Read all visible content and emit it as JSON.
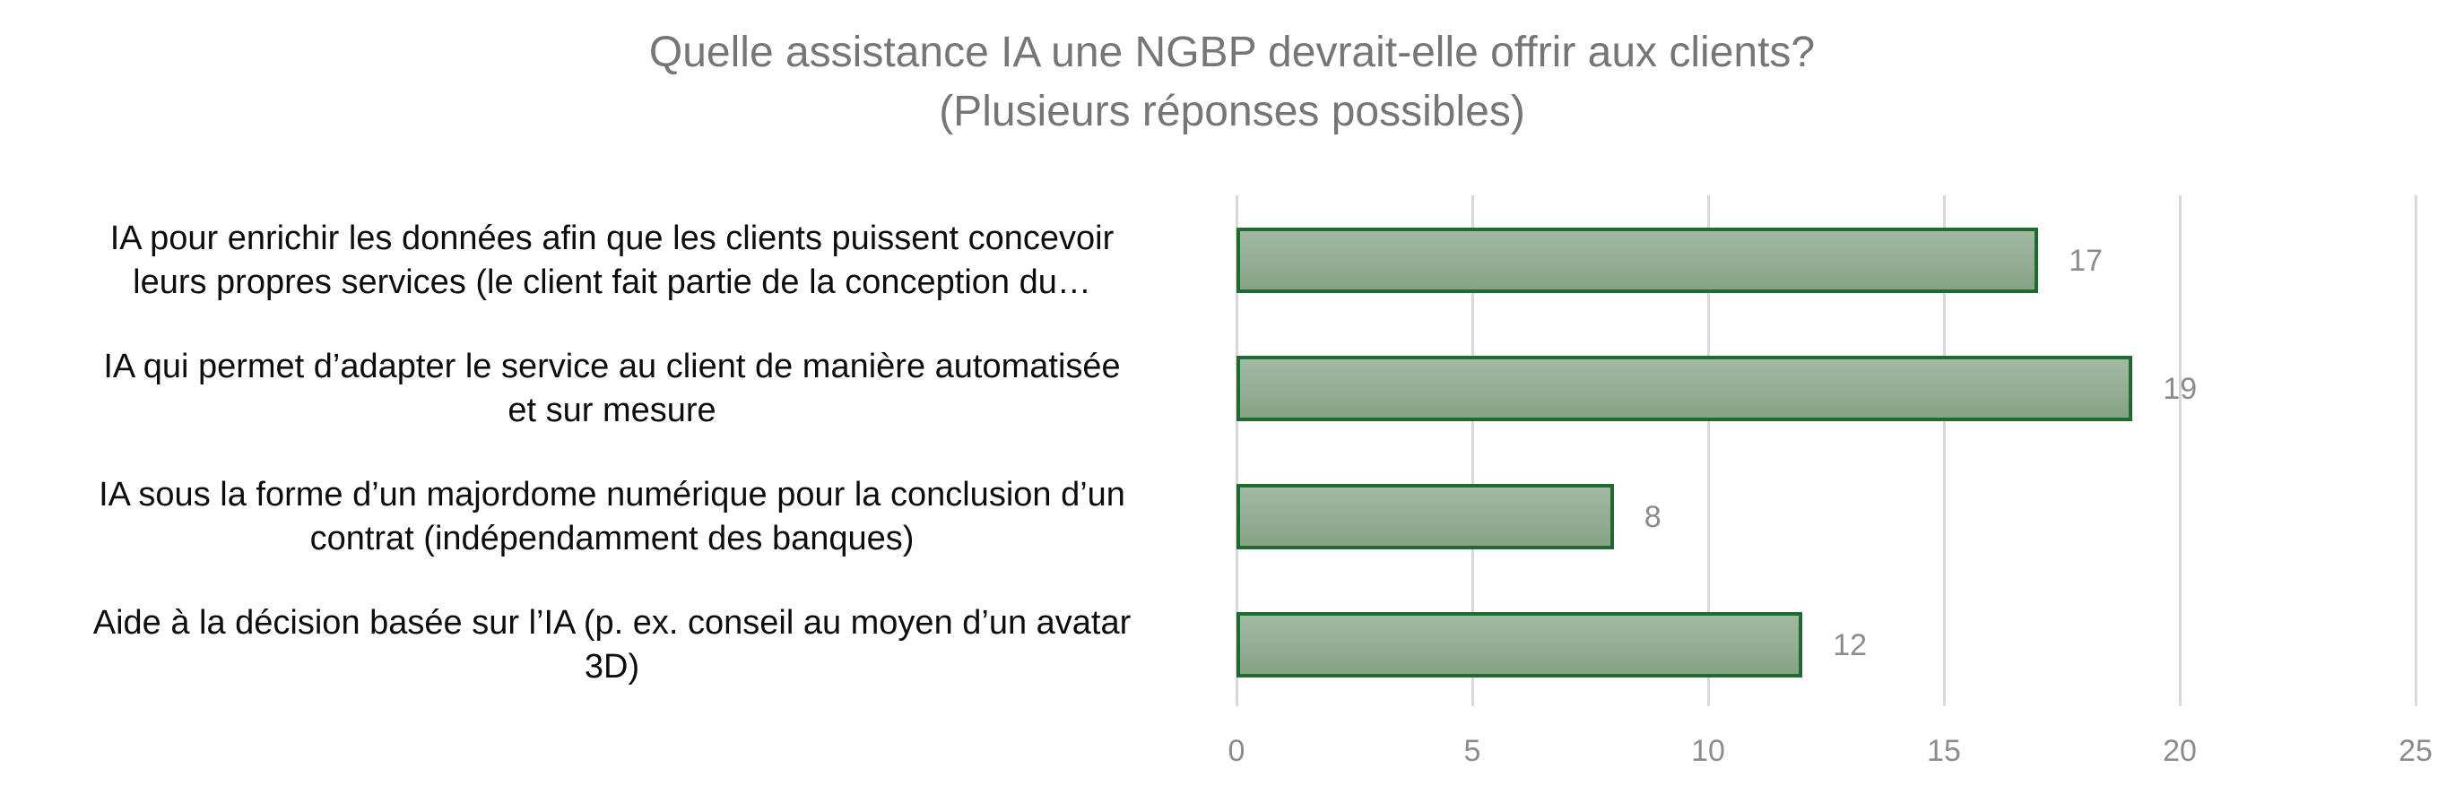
{
  "chart": {
    "title_line1": "Quelle assistance IA une NGBP devrait-elle offrir aux clients?",
    "title_line2": "(Plusieurs réponses possibles)"
  },
  "chart_data": {
    "type": "bar",
    "orientation": "horizontal",
    "title": "Quelle assistance IA une NGBP devrait-elle offrir aux clients? (Plusieurs réponses possibles)",
    "categories": [
      "IA pour enrichir les données afin que les clients puissent concevoir leurs propres services (le client fait partie de la conception du…",
      "IA qui permet d’adapter le service au client de manière automatisée et sur mesure",
      "IA sous la forme d’un majordome numérique pour la conclusion d’un contrat (indépendamment des banques)",
      "Aide à la décision basée sur l’IA (p. ex. conseil au moyen d’un avatar 3D)"
    ],
    "category_lines": [
      [
        "IA pour enrichir les données afin que les clients puissent concevoir",
        "leurs propres services (le client fait partie de la conception du…"
      ],
      [
        "IA qui permet d’adapter le service au client de manière automatisée",
        "et sur mesure"
      ],
      [
        "IA sous la forme d’un majordome numérique pour la conclusion d’un",
        "contrat (indépendamment des banques)"
      ],
      [
        "Aide à la décision basée sur l’IA (p. ex. conseil au moyen d’un avatar",
        "3D)"
      ]
    ],
    "values": [
      17,
      19,
      8,
      12
    ],
    "xlim": [
      0,
      25
    ],
    "x_ticks": [
      0,
      5,
      10,
      15,
      20,
      25
    ],
    "grid": true,
    "legend": false,
    "xlabel": "",
    "ylabel": "",
    "colors": {
      "title": "#767676",
      "category_label": "#0d0d0d",
      "value_label": "#8c8c8c",
      "tick_label": "#8c8c8c",
      "gridline": "#d9d9d9",
      "bar_fill_top": "#a3b9a2",
      "bar_fill_bottom": "#87a288",
      "bar_border": "#1f6b2f",
      "background": "#ffffff"
    }
  }
}
